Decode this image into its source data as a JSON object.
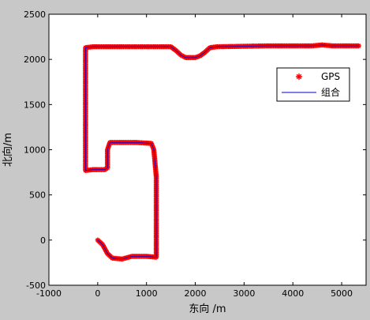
{
  "chart_data": {
    "type": "scatter",
    "xlabel": "东向 /m",
    "ylabel": "北向/m",
    "xlim": [
      -1000,
      5500
    ],
    "ylim": [
      -500,
      2500
    ],
    "xticks": [
      -1000,
      0,
      1000,
      2000,
      3000,
      4000,
      5000
    ],
    "yticks": [
      -500,
      0,
      500,
      1000,
      1500,
      2000,
      2500
    ],
    "grid": false,
    "legend": {
      "placement": "inside-right",
      "entries": [
        "GPS",
        "组合"
      ]
    },
    "series": [
      {
        "name": "GPS",
        "style": "markers",
        "marker": "*",
        "color": "#ff0000",
        "points": [
          [
            0,
            0
          ],
          [
            100,
            -50
          ],
          [
            200,
            -150
          ],
          [
            300,
            -200
          ],
          [
            500,
            -210
          ],
          [
            700,
            -180
          ],
          [
            1000,
            -180
          ],
          [
            1200,
            -190
          ],
          [
            1200,
            -150
          ],
          [
            1200,
            100
          ],
          [
            1200,
            400
          ],
          [
            1200,
            700
          ],
          [
            1150,
            1000
          ],
          [
            1100,
            1070
          ],
          [
            800,
            1080
          ],
          [
            500,
            1080
          ],
          [
            250,
            1080
          ],
          [
            200,
            1000
          ],
          [
            200,
            800
          ],
          [
            150,
            780
          ],
          [
            -100,
            780
          ],
          [
            -250,
            770
          ],
          [
            -250,
            1000
          ],
          [
            -250,
            1500
          ],
          [
            -250,
            2000
          ],
          [
            -250,
            2130
          ],
          [
            -100,
            2140
          ],
          [
            100,
            2140
          ],
          [
            300,
            2140
          ],
          [
            500,
            2140
          ],
          [
            1300,
            2140
          ],
          [
            1500,
            2140
          ],
          [
            1600,
            2100
          ],
          [
            1700,
            2050
          ],
          [
            1800,
            2020
          ],
          [
            2000,
            2020
          ],
          [
            2100,
            2040
          ],
          [
            2200,
            2080
          ],
          [
            2300,
            2130
          ],
          [
            2450,
            2140
          ],
          [
            3500,
            2150
          ],
          [
            3800,
            2150
          ],
          [
            4100,
            2150
          ],
          [
            4400,
            2150
          ],
          [
            4600,
            2160
          ],
          [
            4800,
            2150
          ],
          [
            5100,
            2150
          ],
          [
            5350,
            2150
          ]
        ]
      },
      {
        "name": "组合",
        "style": "line",
        "color": "#0000cc",
        "points": [
          [
            0,
            0
          ],
          [
            100,
            -50
          ],
          [
            200,
            -150
          ],
          [
            300,
            -200
          ],
          [
            500,
            -210
          ],
          [
            700,
            -180
          ],
          [
            1000,
            -180
          ],
          [
            1200,
            -190
          ],
          [
            1200,
            -150
          ],
          [
            1200,
            100
          ],
          [
            1200,
            400
          ],
          [
            1200,
            700
          ],
          [
            1150,
            1000
          ],
          [
            1100,
            1070
          ],
          [
            800,
            1080
          ],
          [
            500,
            1080
          ],
          [
            250,
            1080
          ],
          [
            200,
            1000
          ],
          [
            200,
            800
          ],
          [
            150,
            780
          ],
          [
            -100,
            780
          ],
          [
            -250,
            770
          ],
          [
            -250,
            1000
          ],
          [
            -250,
            1500
          ],
          [
            -250,
            2000
          ],
          [
            -250,
            2130
          ],
          [
            -100,
            2140
          ],
          [
            100,
            2140
          ],
          [
            300,
            2140
          ],
          [
            500,
            2140
          ],
          [
            1300,
            2140
          ],
          [
            1500,
            2140
          ],
          [
            1600,
            2100
          ],
          [
            1700,
            2050
          ],
          [
            1800,
            2020
          ],
          [
            2000,
            2020
          ],
          [
            2100,
            2040
          ],
          [
            2200,
            2080
          ],
          [
            2300,
            2130
          ],
          [
            2450,
            2140
          ],
          [
            3500,
            2150
          ],
          [
            3800,
            2150
          ],
          [
            4100,
            2150
          ],
          [
            4400,
            2150
          ],
          [
            4600,
            2160
          ],
          [
            4800,
            2150
          ],
          [
            5100,
            2150
          ],
          [
            5350,
            2150
          ]
        ]
      }
    ]
  }
}
